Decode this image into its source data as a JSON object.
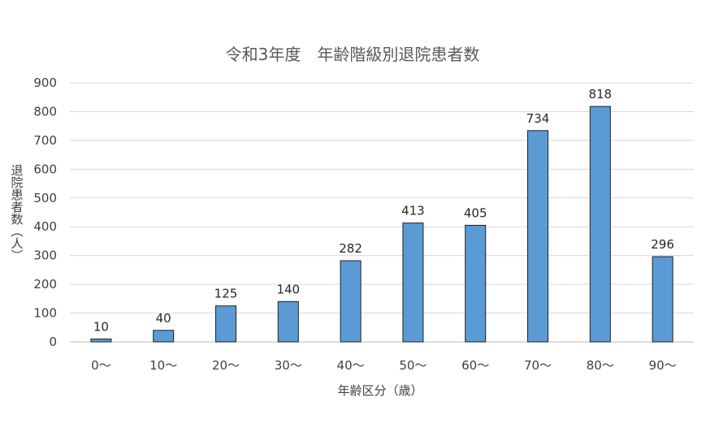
{
  "chart_data": {
    "type": "bar",
    "title": "令和3年度　年齢階級別退院患者数",
    "xlabel": "年齢区分（歳）",
    "ylabel": "退院患者数（人）",
    "categories": [
      "0〜",
      "10〜",
      "20〜",
      "30〜",
      "40〜",
      "50〜",
      "60〜",
      "70〜",
      "80〜",
      "90〜"
    ],
    "values": [
      10,
      40,
      125,
      140,
      282,
      413,
      405,
      734,
      818,
      296
    ],
    "ylim": [
      0,
      900
    ],
    "ytick_step": 100,
    "grid": true,
    "legend": "none",
    "bar_color": "#5b9bd5"
  }
}
